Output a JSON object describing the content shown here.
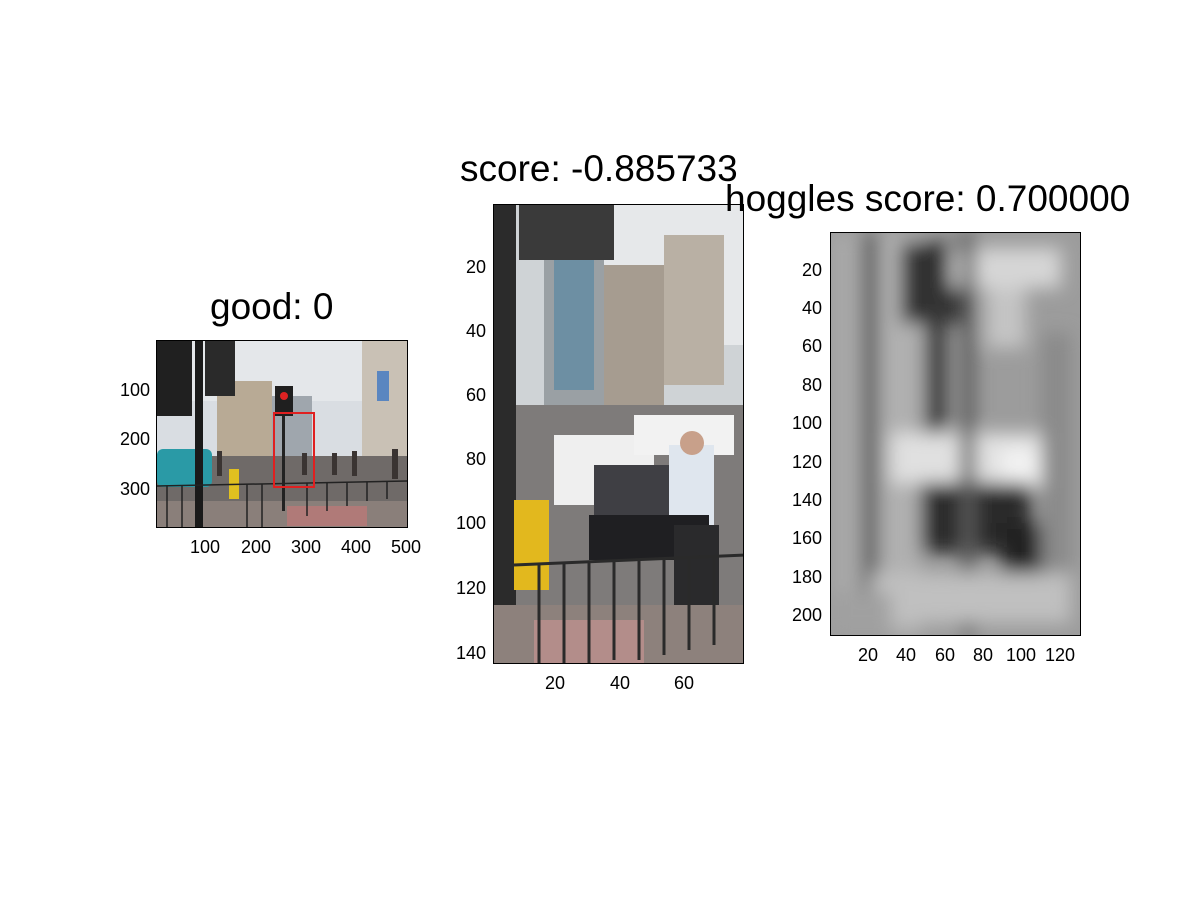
{
  "panels": [
    {
      "title": "good: 0",
      "image_description_tag": "street-scene-photo",
      "yticks": [
        "100",
        "200",
        "300"
      ],
      "xticks": [
        "100",
        "200",
        "300",
        "400",
        "500"
      ]
    },
    {
      "title": "score: -0.885733",
      "image_description_tag": "cropped-pedestrian-photo",
      "yticks": [
        "20",
        "40",
        "60",
        "80",
        "100",
        "120",
        "140"
      ],
      "xticks": [
        "20",
        "40",
        "60"
      ]
    },
    {
      "title": "hoggles score: 0.700000",
      "image_description_tag": "hoggles-grayscale-reconstruction",
      "yticks": [
        "20",
        "40",
        "60",
        "80",
        "100",
        "120",
        "140",
        "160",
        "180",
        "200"
      ],
      "xticks": [
        "20",
        "40",
        "60",
        "80",
        "100",
        "120"
      ]
    }
  ],
  "colors": {
    "detection_box": "#e02020",
    "background": "#ffffff"
  }
}
